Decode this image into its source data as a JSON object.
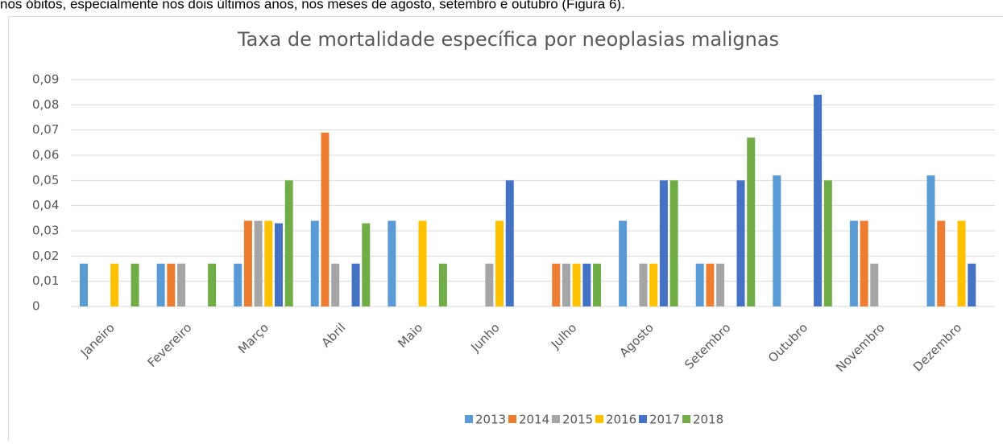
{
  "document_text": "nos óbitos, especialmente nos dois últimos anos, nos meses de agosto, setembro e outubro (Figura 6).",
  "chart_data": {
    "type": "bar",
    "title": "Taxa de mortalidade específica por neoplasias malignas",
    "categories": [
      "Janeiro",
      "Fevereiro",
      "Março",
      "Abril",
      "Maio",
      "Junho",
      "Julho",
      "Agosto",
      "Setembro",
      "Outubro",
      "Novembro",
      "Dezembro"
    ],
    "series": [
      {
        "name": "2013",
        "color": "#5b9bd5",
        "values": [
          0.017,
          0.017,
          0.017,
          0.034,
          0.034,
          0,
          0,
          0.034,
          0.017,
          0.052,
          0.034,
          0.052
        ]
      },
      {
        "name": "2014",
        "color": "#ed7d31",
        "values": [
          0,
          0.017,
          0.034,
          0.069,
          0,
          0,
          0.017,
          0,
          0.017,
          0,
          0.034,
          0.034
        ]
      },
      {
        "name": "2015",
        "color": "#a5a5a5",
        "values": [
          0,
          0.017,
          0.034,
          0.017,
          0,
          0.017,
          0.017,
          0.017,
          0.017,
          0,
          0.017,
          0
        ]
      },
      {
        "name": "2016",
        "color": "#ffc000",
        "values": [
          0.017,
          0,
          0.034,
          0,
          0.034,
          0.034,
          0.017,
          0.017,
          0,
          0,
          0,
          0.034
        ]
      },
      {
        "name": "2017",
        "color": "#4472c4",
        "values": [
          0,
          0,
          0.033,
          0.017,
          0,
          0.05,
          0.017,
          0.05,
          0.05,
          0.084,
          0,
          0.017
        ]
      },
      {
        "name": "2018",
        "color": "#70ad47",
        "values": [
          0.017,
          0.017,
          0.05,
          0.033,
          0.017,
          0,
          0.017,
          0.05,
          0.067,
          0.05,
          0,
          0
        ]
      }
    ],
    "ylim": [
      0,
      0.09
    ],
    "yticks": [
      0,
      {
        "value": 0.01,
        "label": "0,01"
      },
      {
        "value": 0.02,
        "label": "0,02"
      },
      {
        "value": 0.03,
        "label": "0,03"
      },
      {
        "value": 0.04,
        "label": "0,04"
      },
      {
        "value": 0.05,
        "label": "0,05"
      },
      {
        "value": 0.06,
        "label": "0,06"
      },
      {
        "value": 0.07,
        "label": "0,07"
      },
      {
        "value": 0.08,
        "label": "0,08"
      },
      {
        "value": 0.09,
        "label": "0,09"
      }
    ],
    "grid": true,
    "legend": "bottom"
  }
}
